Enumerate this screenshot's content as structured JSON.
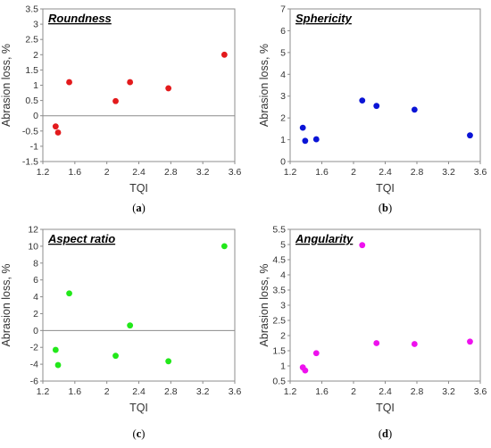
{
  "chart_data": [
    {
      "type": "scatter",
      "title": "Roundness",
      "xlabel": "TQI",
      "ylabel": "Abrasion loss, %",
      "xlim": [
        1.2,
        3.6
      ],
      "ylim": [
        -1.5,
        3.5
      ],
      "xticks": [
        "1.2",
        "1.6",
        "2",
        "2.4",
        "2.8",
        "3.2",
        "3.6"
      ],
      "yticks": [
        "-1.5",
        "-1",
        "-0.5",
        "0",
        "0.5",
        "1",
        "1.5",
        "2",
        "2.5",
        "3",
        "3.5"
      ],
      "grid": false,
      "color": "#e31a1c",
      "panel_label": {
        "pre": "(",
        "letter": "a",
        "post": ")"
      },
      "points": [
        {
          "x": 1.36,
          "y": -0.35
        },
        {
          "x": 1.39,
          "y": -0.55
        },
        {
          "x": 1.53,
          "y": 1.1
        },
        {
          "x": 2.11,
          "y": 0.48
        },
        {
          "x": 2.29,
          "y": 1.1
        },
        {
          "x": 2.77,
          "y": 0.9
        },
        {
          "x": 3.47,
          "y": 2.0
        }
      ]
    },
    {
      "type": "scatter",
      "title": "Sphericity",
      "xlabel": "TQI",
      "ylabel": "Abrasion loss, %",
      "xlim": [
        1.2,
        3.6
      ],
      "ylim": [
        0,
        7
      ],
      "xticks": [
        "1.2",
        "1.6",
        "2",
        "2.4",
        "2.8",
        "3.2",
        "3.6"
      ],
      "yticks": [
        "0",
        "1",
        "2",
        "3",
        "4",
        "5",
        "6",
        "7"
      ],
      "grid": false,
      "color": "#0a14d6",
      "panel_label": {
        "pre": "(",
        "letter": "b",
        "post": ")"
      },
      "points": [
        {
          "x": 1.36,
          "y": 1.55
        },
        {
          "x": 1.39,
          "y": 0.95
        },
        {
          "x": 1.53,
          "y": 1.02
        },
        {
          "x": 2.11,
          "y": 2.8
        },
        {
          "x": 2.29,
          "y": 2.55
        },
        {
          "x": 2.77,
          "y": 2.38
        },
        {
          "x": 3.47,
          "y": 1.2
        }
      ]
    },
    {
      "type": "scatter",
      "title": "Aspect ratio",
      "xlabel": "TQI",
      "ylabel": "Abrasion loss, %",
      "xlim": [
        1.2,
        3.6
      ],
      "ylim": [
        -6,
        12
      ],
      "xticks": [
        "1.2",
        "1.6",
        "2",
        "2.4",
        "2.8",
        "3.2",
        "3.6"
      ],
      "yticks": [
        "-6",
        "-4",
        "-2",
        "0",
        "2",
        "4",
        "6",
        "8",
        "10",
        "12"
      ],
      "grid": false,
      "color": "#22e81a",
      "panel_label": {
        "pre": "(",
        "letter": "c",
        "post": ")"
      },
      "points": [
        {
          "x": 1.36,
          "y": -2.3
        },
        {
          "x": 1.39,
          "y": -4.1
        },
        {
          "x": 1.53,
          "y": 4.4
        },
        {
          "x": 2.11,
          "y": -3.0
        },
        {
          "x": 2.29,
          "y": 0.6
        },
        {
          "x": 2.77,
          "y": -3.65
        },
        {
          "x": 3.47,
          "y": 10.0
        }
      ]
    },
    {
      "type": "scatter",
      "title": "Angularity",
      "xlabel": "TQI",
      "ylabel": "Abrasion loss, %",
      "xlim": [
        1.2,
        3.6
      ],
      "ylim": [
        0.5,
        5.5
      ],
      "xticks": [
        "1.2",
        "1.6",
        "2",
        "2.4",
        "2.8",
        "3.2",
        "3.6"
      ],
      "yticks": [
        "0.5",
        "1",
        "1.5",
        "2",
        "2.5",
        "3",
        "3.5",
        "4",
        "4.5",
        "5",
        "5.5"
      ],
      "grid": false,
      "color": "#ee11ee",
      "panel_label": {
        "pre": "(",
        "letter": "d",
        "post": ")"
      },
      "points": [
        {
          "x": 1.36,
          "y": 0.95
        },
        {
          "x": 1.39,
          "y": 0.85
        },
        {
          "x": 1.53,
          "y": 1.42
        },
        {
          "x": 2.11,
          "y": 4.98
        },
        {
          "x": 2.29,
          "y": 1.75
        },
        {
          "x": 2.77,
          "y": 1.72
        },
        {
          "x": 3.47,
          "y": 1.8
        }
      ]
    }
  ]
}
